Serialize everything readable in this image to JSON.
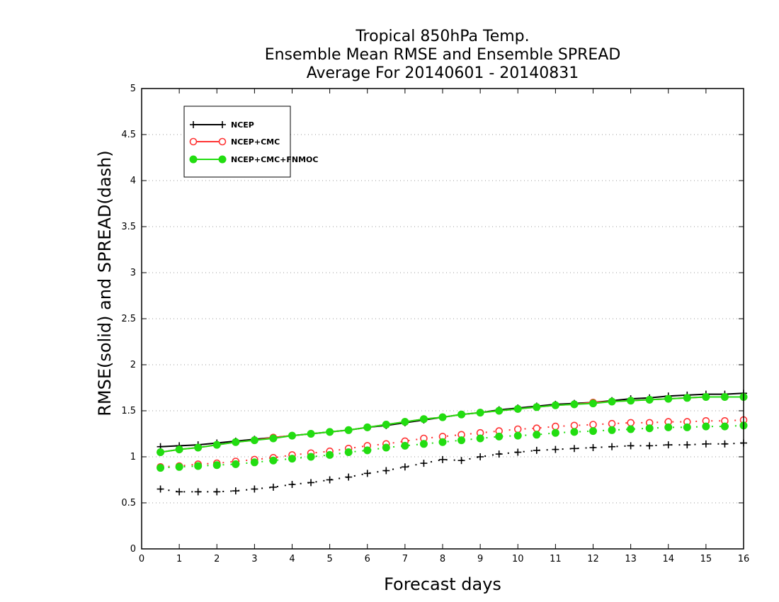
{
  "chart_data": {
    "type": "line",
    "title": [
      "Tropical 850hPa Temp.",
      "Ensemble Mean RMSE and Ensemble SPREAD",
      "Average For 20140601 - 20140831"
    ],
    "xlabel": "Forecast days",
    "ylabel": "RMSE(solid) and SPREAD(dash)",
    "xlim": [
      0,
      16
    ],
    "ylim": [
      0,
      5
    ],
    "xticks": [
      "0",
      "1",
      "2",
      "3",
      "4",
      "5",
      "6",
      "7",
      "8",
      "9",
      "10",
      "11",
      "12",
      "13",
      "14",
      "15",
      "16"
    ],
    "yticks": [
      "0",
      "0.5",
      "1",
      "1.5",
      "2",
      "2.5",
      "3",
      "3.5",
      "4",
      "4.5",
      "5"
    ],
    "grid": true,
    "legend_position": "top-left",
    "x": [
      0.5,
      1,
      1.5,
      2,
      2.5,
      3,
      3.5,
      4,
      4.5,
      5,
      5.5,
      6,
      6.5,
      7,
      7.5,
      8,
      8.5,
      9,
      9.5,
      10,
      10.5,
      11,
      11.5,
      12,
      12.5,
      13,
      13.5,
      14,
      14.5,
      15,
      15.5,
      16
    ],
    "series": [
      {
        "name": "NCEP",
        "color": "#000000",
        "marker": "plus",
        "rmse": [
          1.11,
          1.12,
          1.13,
          1.15,
          1.17,
          1.19,
          1.21,
          1.23,
          1.25,
          1.27,
          1.29,
          1.32,
          1.34,
          1.37,
          1.4,
          1.43,
          1.46,
          1.48,
          1.51,
          1.53,
          1.55,
          1.57,
          1.58,
          1.59,
          1.61,
          1.63,
          1.64,
          1.66,
          1.67,
          1.68,
          1.68,
          1.69
        ],
        "spread": [
          0.65,
          0.62,
          0.62,
          0.62,
          0.63,
          0.65,
          0.67,
          0.7,
          0.72,
          0.75,
          0.78,
          0.82,
          0.85,
          0.89,
          0.93,
          0.97,
          0.96,
          1.0,
          1.03,
          1.05,
          1.07,
          1.08,
          1.09,
          1.1,
          1.11,
          1.12,
          1.12,
          1.13,
          1.13,
          1.14,
          1.14,
          1.15
        ]
      },
      {
        "name": "NCEP+CMC",
        "color": "#ff3333",
        "marker": "open-circle",
        "rmse": [
          1.05,
          1.08,
          1.1,
          1.13,
          1.16,
          1.18,
          1.21,
          1.23,
          1.25,
          1.27,
          1.29,
          1.32,
          1.35,
          1.38,
          1.41,
          1.43,
          1.46,
          1.48,
          1.5,
          1.52,
          1.54,
          1.56,
          1.57,
          1.59,
          1.6,
          1.61,
          1.62,
          1.63,
          1.64,
          1.65,
          1.65,
          1.65
        ],
        "spread": [
          0.89,
          0.9,
          0.92,
          0.93,
          0.95,
          0.97,
          0.99,
          1.02,
          1.04,
          1.06,
          1.09,
          1.12,
          1.14,
          1.17,
          1.2,
          1.22,
          1.24,
          1.26,
          1.28,
          1.3,
          1.31,
          1.33,
          1.34,
          1.35,
          1.36,
          1.37,
          1.37,
          1.38,
          1.38,
          1.39,
          1.39,
          1.4
        ]
      },
      {
        "name": "NCEP+CMC+FNMOC",
        "color": "#22dd11",
        "marker": "filled-circle",
        "rmse": [
          1.05,
          1.08,
          1.1,
          1.13,
          1.16,
          1.18,
          1.2,
          1.23,
          1.25,
          1.27,
          1.29,
          1.32,
          1.35,
          1.38,
          1.41,
          1.43,
          1.46,
          1.48,
          1.5,
          1.52,
          1.54,
          1.56,
          1.57,
          1.58,
          1.6,
          1.61,
          1.62,
          1.63,
          1.64,
          1.65,
          1.65,
          1.65
        ],
        "spread": [
          0.88,
          0.89,
          0.9,
          0.91,
          0.92,
          0.94,
          0.96,
          0.98,
          1.0,
          1.02,
          1.05,
          1.07,
          1.1,
          1.12,
          1.14,
          1.16,
          1.18,
          1.2,
          1.22,
          1.23,
          1.24,
          1.26,
          1.27,
          1.28,
          1.29,
          1.3,
          1.31,
          1.32,
          1.32,
          1.33,
          1.33,
          1.34
        ]
      }
    ]
  }
}
